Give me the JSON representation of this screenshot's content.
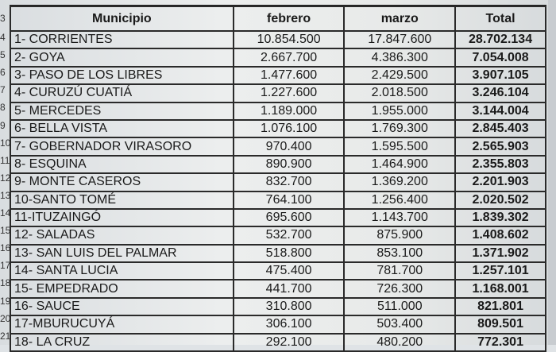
{
  "table": {
    "headers": [
      "Municipio",
      "febrero",
      "marzo",
      "Total"
    ],
    "row_numbers": [
      "3",
      "4",
      "5",
      "6",
      "7",
      "8",
      "9",
      "10",
      "11",
      "12",
      "13",
      "14",
      "15",
      "16",
      "17",
      "18",
      "19",
      "20",
      "21"
    ],
    "rows": [
      {
        "municipio": "1- CORRIENTES",
        "febrero": "10.854.500",
        "marzo": "17.847.600",
        "total": "28.702.134"
      },
      {
        "municipio": "2- GOYA",
        "febrero": "2.667.700",
        "marzo": "4.386.300",
        "total": "7.054.008"
      },
      {
        "municipio": "3- PASO DE LOS LIBRES",
        "febrero": "1.477.600",
        "marzo": "2.429.500",
        "total": "3.907.105"
      },
      {
        "municipio": "4- CURUZÚ CUATIÁ",
        "febrero": "1.227.600",
        "marzo": "2.018.500",
        "total": "3.246.104"
      },
      {
        "municipio": "5- MERCEDES",
        "febrero": "1.189.000",
        "marzo": "1.955.000",
        "total": "3.144.004"
      },
      {
        "municipio": "6- BELLA VISTA",
        "febrero": "1.076.100",
        "marzo": "1.769.300",
        "total": "2.845.403"
      },
      {
        "municipio": "7- GOBERNADOR VIRASORO",
        "febrero": "970.400",
        "marzo": "1.595.500",
        "total": "2.565.903"
      },
      {
        "municipio": "8- ESQUINA",
        "febrero": "890.900",
        "marzo": "1.464.900",
        "total": "2.355.803"
      },
      {
        "municipio": "9- MONTE CASEROS",
        "febrero": "832.700",
        "marzo": "1.369.200",
        "total": "2.201.903"
      },
      {
        "municipio": "10-SANTO TOMÉ",
        "febrero": "764.100",
        "marzo": "1.256.400",
        "total": "2.020.502"
      },
      {
        "municipio": "11-ITUZAINGÓ",
        "febrero": "695.600",
        "marzo": "1.143.700",
        "total": "1.839.302"
      },
      {
        "municipio": "12- SALADAS",
        "febrero": "532.700",
        "marzo": "875.900",
        "total": "1.408.602"
      },
      {
        "municipio": "13- SAN LUIS DEL PALMAR",
        "febrero": "518.800",
        "marzo": "853.100",
        "total": "1.371.902"
      },
      {
        "municipio": "14- SANTA LUCIA",
        "febrero": "475.400",
        "marzo": "781.700",
        "total": "1.257.101"
      },
      {
        "municipio": "15- EMPEDRADO",
        "febrero": "441.700",
        "marzo": "726.300",
        "total": "1.168.001"
      },
      {
        "municipio": "16- SAUCE",
        "febrero": "310.800",
        "marzo": "511.000",
        "total": "821.801"
      },
      {
        "municipio": "17-MBURUCUYÁ",
        "febrero": "306.100",
        "marzo": "503.400",
        "total": "809.501"
      },
      {
        "municipio": "18- LA CRUZ",
        "febrero": "292.100",
        "marzo": "480.200",
        "total": "772.301"
      }
    ]
  }
}
